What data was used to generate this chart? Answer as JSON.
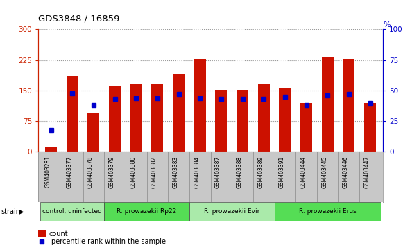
{
  "title": "GDS3848 / 16859",
  "samples": [
    "GSM403281",
    "GSM403377",
    "GSM403378",
    "GSM403379",
    "GSM403380",
    "GSM403382",
    "GSM403383",
    "GSM403384",
    "GSM403387",
    "GSM403388",
    "GSM403389",
    "GSM403391",
    "GSM403444",
    "GSM403445",
    "GSM403446",
    "GSM403447"
  ],
  "counts": [
    12,
    185,
    95,
    162,
    167,
    167,
    190,
    228,
    151,
    151,
    167,
    156,
    120,
    233,
    228,
    120
  ],
  "percentiles": [
    18,
    48,
    38,
    43,
    44,
    44,
    47,
    44,
    43,
    43,
    43,
    45,
    38,
    46,
    47,
    40
  ],
  "groups": [
    {
      "label": "control, uninfected",
      "start": 0,
      "end": 3,
      "color": "#aaeaaa"
    },
    {
      "label": "R. prowazekii Rp22",
      "start": 3,
      "end": 7,
      "color": "#55dd55"
    },
    {
      "label": "R. prowazekii Evir",
      "start": 7,
      "end": 11,
      "color": "#aaeaaa"
    },
    {
      "label": "R. prowazekii Erus",
      "start": 11,
      "end": 16,
      "color": "#55dd55"
    }
  ],
  "bar_color": "#cc1100",
  "dot_color": "#0000cc",
  "left_ylim": [
    0,
    300
  ],
  "right_ylim": [
    0,
    100
  ],
  "left_yticks": [
    0,
    75,
    150,
    225,
    300
  ],
  "right_yticks": [
    0,
    25,
    50,
    75,
    100
  ],
  "left_color": "#cc2200",
  "right_color": "#0000cc",
  "grid_color": "#999999",
  "label_bg": "#c8c8c8",
  "bar_width": 0.55,
  "legend_count_label": "count",
  "legend_pct_label": "percentile rank within the sample"
}
